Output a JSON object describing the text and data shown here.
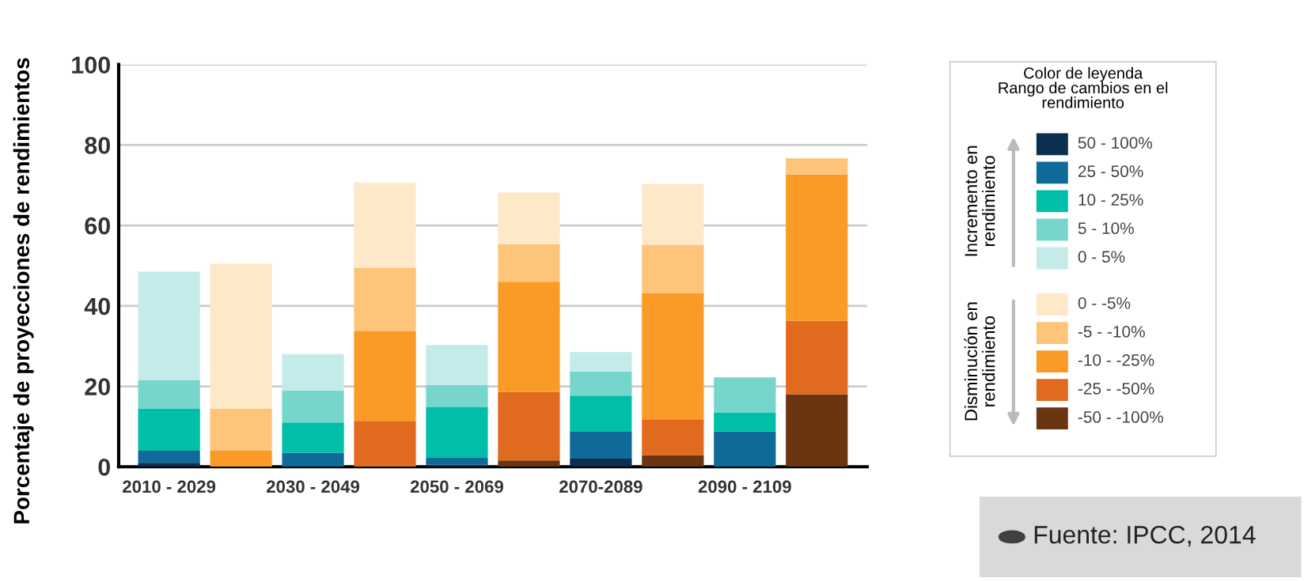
{
  "chart_data": {
    "type": "bar",
    "stacked": true,
    "ylabel": "Porcentaje de proyecciones de rendimientos",
    "categories": [
      "2010 - 2029",
      null,
      "2030 - 2049",
      null,
      "2050 - 2069",
      null,
      "2070-2089",
      null,
      "2090 - 2109",
      null
    ],
    "ylim": [
      0,
      100
    ],
    "yticks": [
      0,
      20,
      40,
      60,
      80,
      100
    ],
    "grid": "y",
    "legend": "right",
    "legend_title": "Color de leyenda\nRango de cambios en el\nrendimiento",
    "series": [
      {
        "name": "50 - 100%",
        "color": "#0a2f4f",
        "values": [
          1,
          0,
          0,
          0,
          0.5,
          0,
          2,
          0,
          0,
          0
        ]
      },
      {
        "name": "25 - 50%",
        "color": "#0f6a99",
        "values": [
          3,
          0,
          3.5,
          0,
          1.7,
          0,
          6.7,
          0,
          8.8,
          0
        ]
      },
      {
        "name": "10 - 25%",
        "color": "#00bfa9",
        "values": [
          10.5,
          0,
          7.5,
          0,
          12.6,
          0,
          9,
          0,
          4.7,
          0
        ]
      },
      {
        "name": "5 - 10%",
        "color": "#76d6cc",
        "values": [
          7,
          0,
          8,
          0,
          5.5,
          0,
          6,
          0,
          8.7,
          0
        ]
      },
      {
        "name": "0 - 5%",
        "color": "#c5eaea",
        "values": [
          27,
          0,
          9,
          0,
          10,
          0,
          4.8,
          0,
          0,
          0
        ]
      },
      {
        "name": "-50 - -100%",
        "color": "#6b3512",
        "values": [
          0,
          0,
          0,
          0,
          0,
          1.6,
          0,
          2.9,
          0,
          18
        ]
      },
      {
        "name": "-25 - -50%",
        "color": "#e06a1e",
        "values": [
          0,
          0,
          0,
          11.4,
          0,
          17,
          0,
          8.9,
          0,
          18.3
        ]
      },
      {
        "name": "-10 - -25%",
        "color": "#fa9b25",
        "values": [
          0,
          4,
          0,
          22.3,
          0,
          27.4,
          0,
          31.4,
          0,
          36.4
        ]
      },
      {
        "name": "-5 - -10%",
        "color": "#fdc47a",
        "values": [
          0,
          10.5,
          0,
          15.8,
          0,
          9.3,
          0,
          12,
          0,
          4
        ]
      },
      {
        "name": "0 - -5%",
        "color": "#fde8c8",
        "values": [
          0,
          36,
          0,
          21.2,
          0,
          12.9,
          0,
          15.1,
          0,
          0
        ]
      }
    ],
    "annotations": [
      "Incremento en rendimiento",
      "Disminución en rendimiento",
      "Fuente: IPCC, 2014"
    ]
  }
}
